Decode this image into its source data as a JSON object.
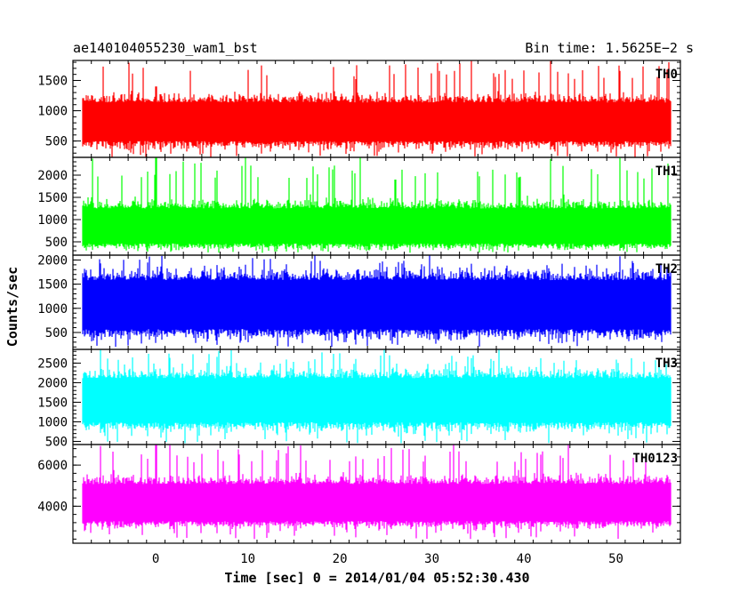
{
  "header": {
    "left": "ae140104055230_wam1_bst",
    "right": "Bin time: 1.5625E−2 s"
  },
  "chart_data": {
    "type": "line",
    "title": "ae140104055230_wam1_bst",
    "subtitle": "Bin time: 1.5625E−2 s",
    "xlabel": "Time [sec] 0 = 2014/01/04 05:52:30.430",
    "ylabel": "Counts/sec",
    "xlim": [
      -9,
      57
    ],
    "x_ticks": [
      0,
      10,
      20,
      30,
      40,
      50
    ],
    "data_x_range": [
      -8,
      56
    ],
    "bin_time_s": 0.015625,
    "grid": false,
    "panels": [
      {
        "name": "TH0",
        "color": "#ff0000",
        "ylim": [
          230,
          1830
        ],
        "y_ticks": [
          500,
          1000,
          1500
        ],
        "typical_range": [
          400,
          1250
        ],
        "baseline": 800,
        "peaks": [
          {
            "x": 0,
            "y": 1400
          }
        ],
        "max": 1830,
        "min": 230
      },
      {
        "name": "TH1",
        "color": "#00ff00",
        "ylim": [
          200,
          2400
        ],
        "y_ticks": [
          500,
          1000,
          1500,
          2000
        ],
        "typical_range": [
          350,
          1400
        ],
        "baseline": 800,
        "peaks": [
          {
            "x": 0,
            "y": 2400
          },
          {
            "x": 39.5,
            "y": 1950
          },
          {
            "x": 26,
            "y": 1900
          }
        ],
        "max": 2400,
        "min": 250
      },
      {
        "name": "TH2",
        "color": "#0000ff",
        "ylim": [
          150,
          2100
        ],
        "y_ticks": [
          500,
          1000,
          1500,
          2000
        ],
        "typical_range": [
          400,
          1750
        ],
        "baseline": 1080,
        "peaks": [],
        "max": 2100,
        "min": 200
      },
      {
        "name": "TH3",
        "color": "#00ffff",
        "ylim": [
          420,
          2850
        ],
        "y_ticks": [
          500,
          1000,
          1500,
          2000,
          2500
        ],
        "typical_range": [
          800,
          2300
        ],
        "baseline": 1550,
        "peaks": [],
        "max": 2850,
        "min": 450
      },
      {
        "name": "TH0123",
        "color": "#ff00ff",
        "ylim": [
          2200,
          7000
        ],
        "y_ticks": [
          4000,
          6000
        ],
        "typical_range": [
          3000,
          5400
        ],
        "baseline": 4100,
        "peaks": [
          {
            "x": 0,
            "y": 7000
          }
        ],
        "max": 7000,
        "min": 2400
      }
    ]
  }
}
